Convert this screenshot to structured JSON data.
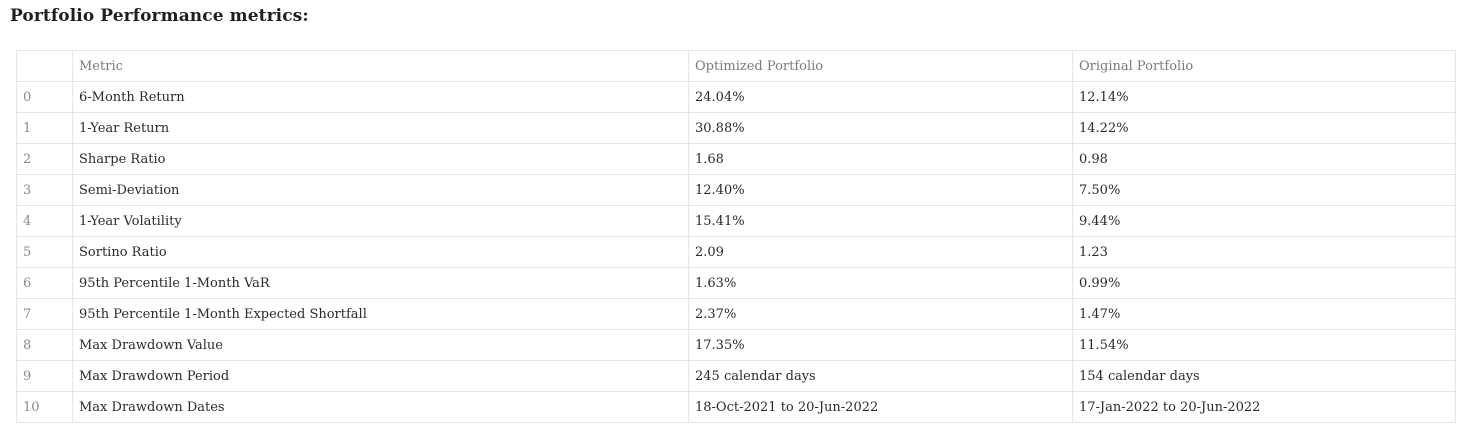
{
  "heading": "Portfolio Performance metrics:",
  "table": {
    "columns": [
      "",
      "Metric",
      "Optimized Portfolio",
      "Original Portfolio"
    ],
    "rows": [
      {
        "index": "0",
        "metric": "6-Month Return",
        "optimized": "24.04%",
        "original": "12.14%"
      },
      {
        "index": "1",
        "metric": "1-Year Return",
        "optimized": "30.88%",
        "original": "14.22%"
      },
      {
        "index": "2",
        "metric": "Sharpe Ratio",
        "optimized": "1.68",
        "original": "0.98"
      },
      {
        "index": "3",
        "metric": "Semi-Deviation",
        "optimized": "12.40%",
        "original": "7.50%"
      },
      {
        "index": "4",
        "metric": "1-Year Volatility",
        "optimized": "15.41%",
        "original": "9.44%"
      },
      {
        "index": "5",
        "metric": "Sortino Ratio",
        "optimized": "2.09",
        "original": "1.23"
      },
      {
        "index": "6",
        "metric": "95th Percentile 1-Month VaR",
        "optimized": "1.63%",
        "original": "0.99%"
      },
      {
        "index": "7",
        "metric": "95th Percentile 1-Month Expected Shortfall",
        "optimized": "2.37%",
        "original": "1.47%"
      },
      {
        "index": "8",
        "metric": "Max Drawdown Value",
        "optimized": "17.35%",
        "original": "11.54%"
      },
      {
        "index": "9",
        "metric": "Max Drawdown Period",
        "optimized": "245 calendar days",
        "original": "154 calendar days"
      },
      {
        "index": "10",
        "metric": "Max Drawdown Dates",
        "optimized": "18-Oct-2021 to 20-Jun-2022",
        "original": "17-Jan-2022 to 20-Jun-2022"
      }
    ]
  }
}
